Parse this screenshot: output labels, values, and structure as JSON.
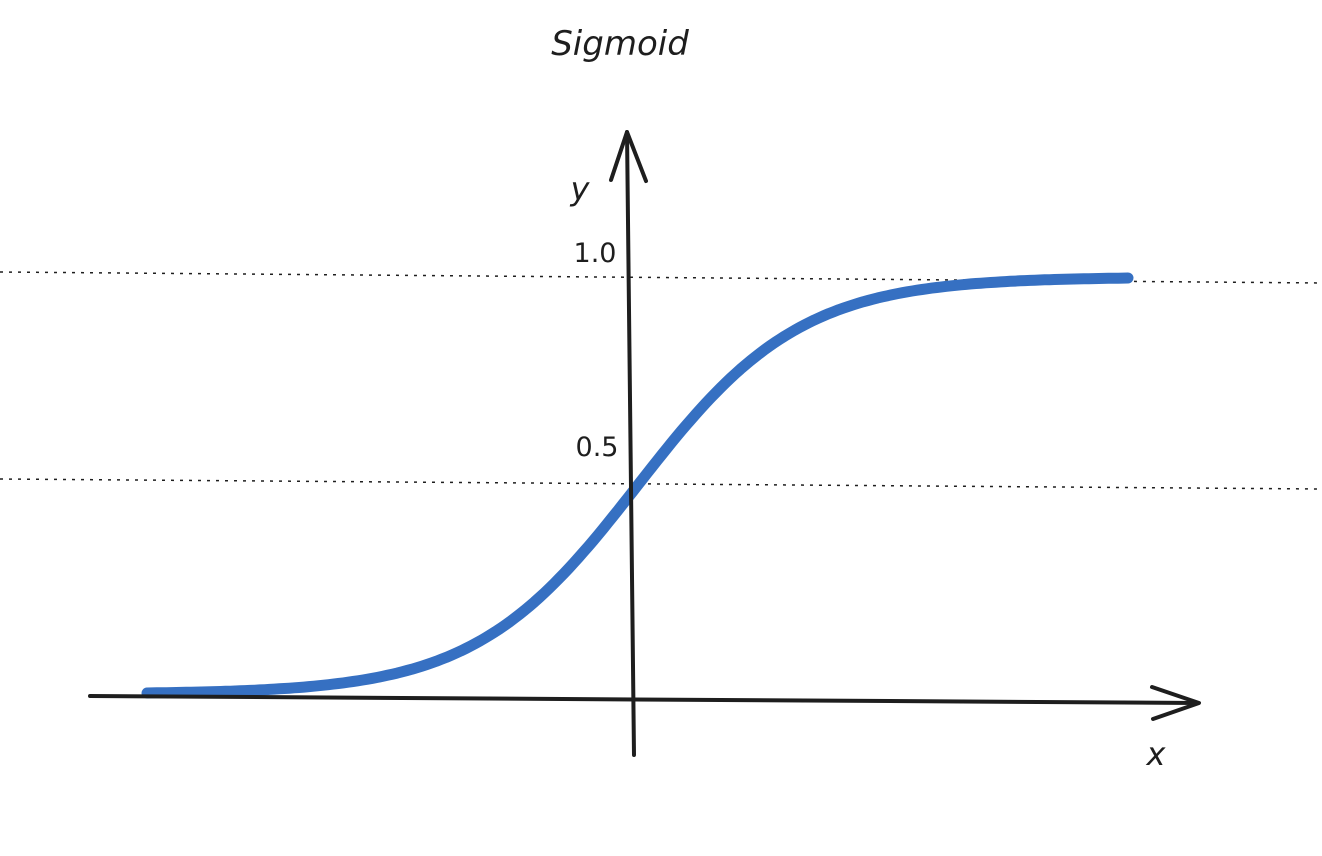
{
  "title": "Sigmoid",
  "axes": {
    "x_label": "x",
    "y_label": "y"
  },
  "reference_lines": [
    {
      "label": "1.0",
      "value": 1.0
    },
    {
      "label": "0.5",
      "value": 0.5
    }
  ],
  "colors": {
    "curve": "#3670c2",
    "ink": "#1e1e1e",
    "background": "#ffffff"
  },
  "chart_data": {
    "type": "line",
    "function": "sigmoid",
    "title": "Sigmoid",
    "xlabel": "x",
    "ylabel": "y",
    "ylim": [
      0,
      1
    ],
    "grid": false,
    "x": [
      -6,
      -5,
      -4,
      -3,
      -2,
      -1.5,
      -1,
      -0.5,
      0,
      0.5,
      1,
      1.5,
      2,
      3,
      4,
      5,
      6
    ],
    "series": [
      {
        "values": [
          0.0025,
          0.0067,
          0.018,
          0.047,
          0.12,
          0.18,
          0.27,
          0.38,
          0.5,
          0.62,
          0.73,
          0.82,
          0.88,
          0.95,
          0.982,
          0.993,
          0.9975
        ]
      }
    ]
  }
}
